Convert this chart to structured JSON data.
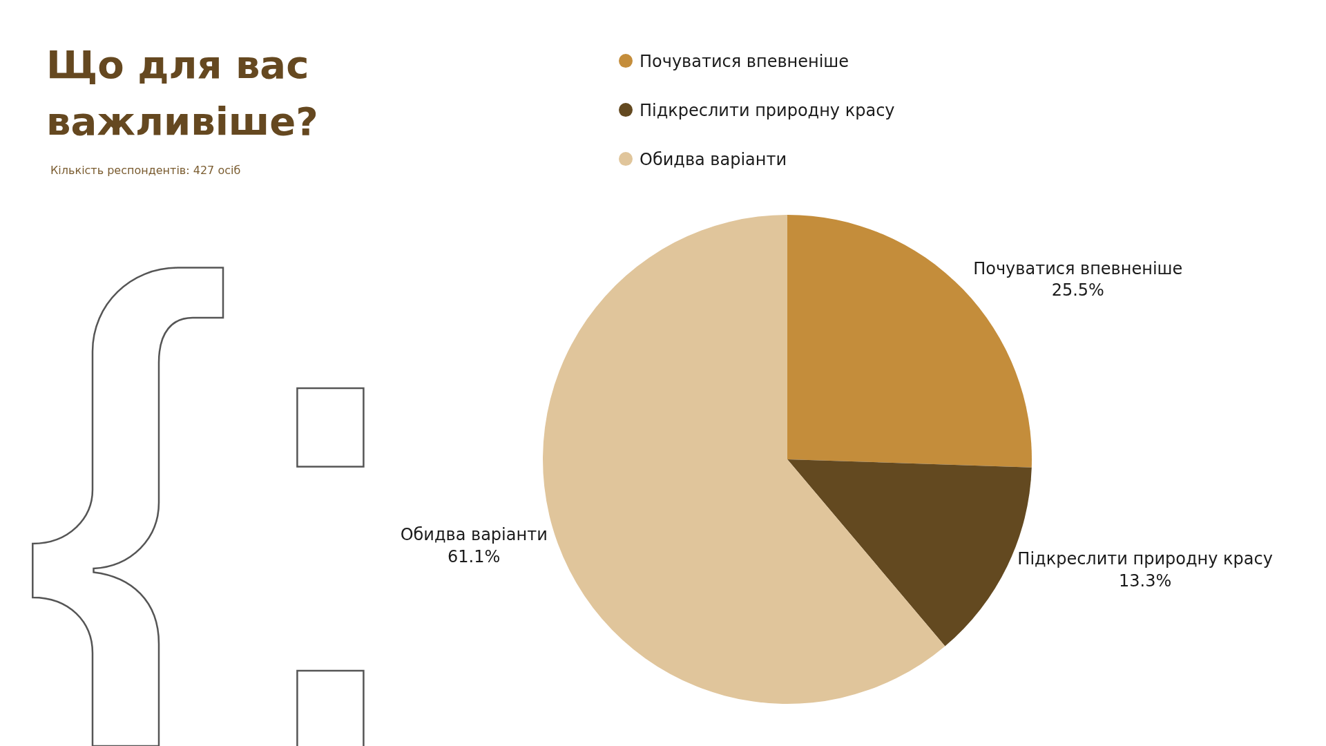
{
  "chart_data": {
    "type": "pie",
    "title": "Що для вас важливіше?",
    "subtitle": "Кількість респондентів: 427 осіб",
    "categories": [
      "Почуватися впевненіше",
      "Підкреслити природну красу",
      "Обидва варіанти"
    ],
    "values": [
      25.5,
      13.3,
      61.1
    ],
    "colors": [
      "#c48d3b",
      "#634920",
      "#e0c59b"
    ],
    "value_labels": [
      "25.5%",
      "13.3%",
      "61.1%"
    ],
    "legend": "top"
  }
}
